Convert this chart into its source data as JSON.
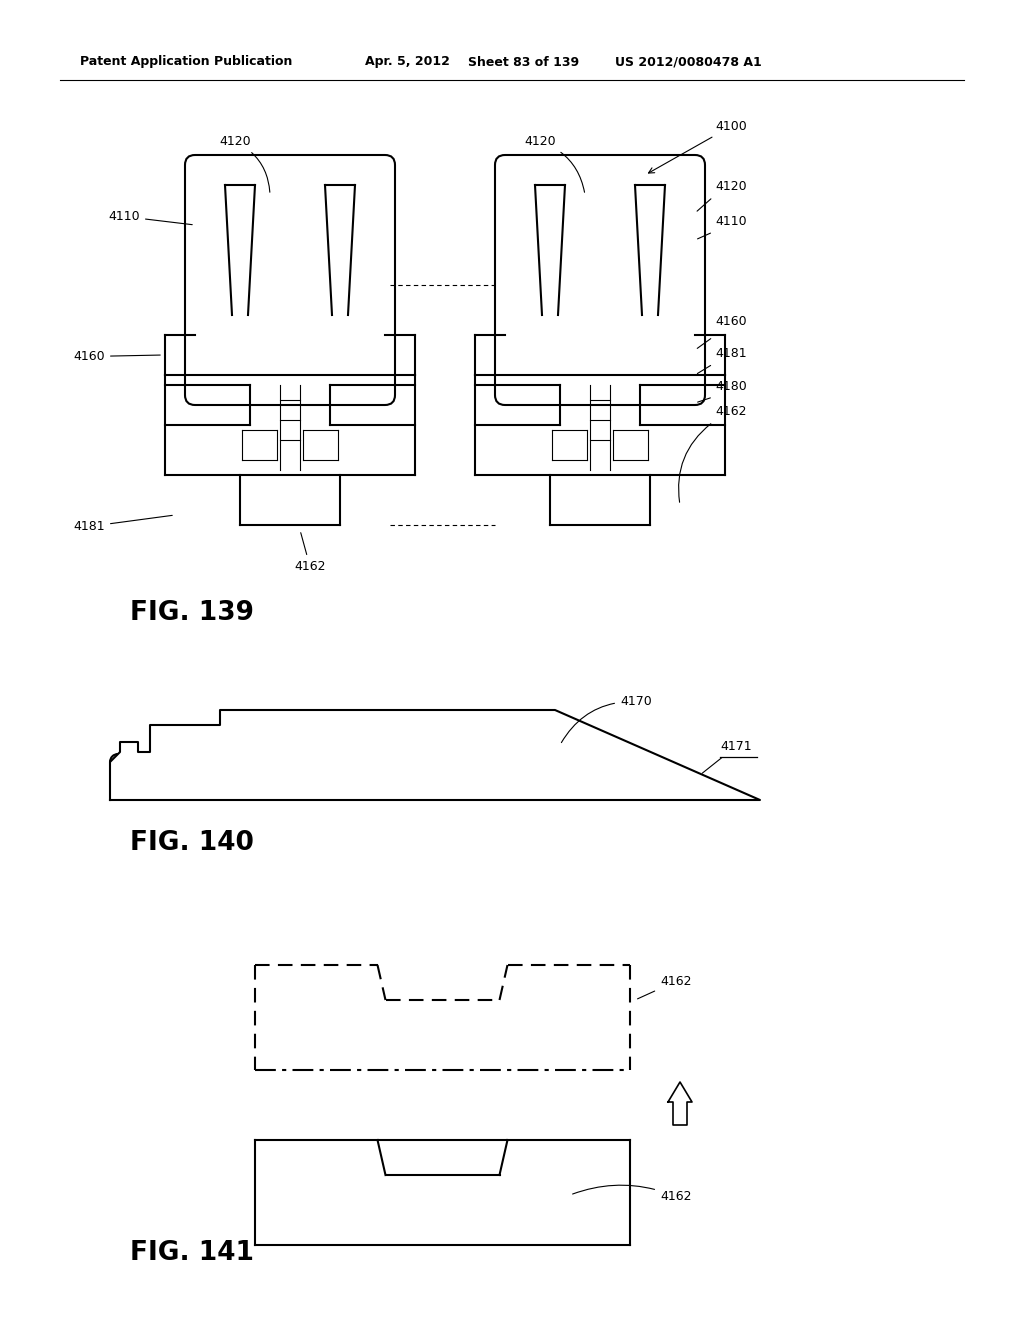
{
  "bg_color": "#ffffff",
  "header_text": "Patent Application Publication",
  "header_date": "Apr. 5, 2012",
  "header_sheet": "Sheet 83 of 139",
  "header_patent": "US 2012/0080478 A1",
  "fig139_label": "FIG. 139",
  "fig140_label": "FIG. 140",
  "fig141_label": "FIG. 141",
  "line_color": "#000000",
  "line_width": 1.5,
  "thin_line": 0.8
}
